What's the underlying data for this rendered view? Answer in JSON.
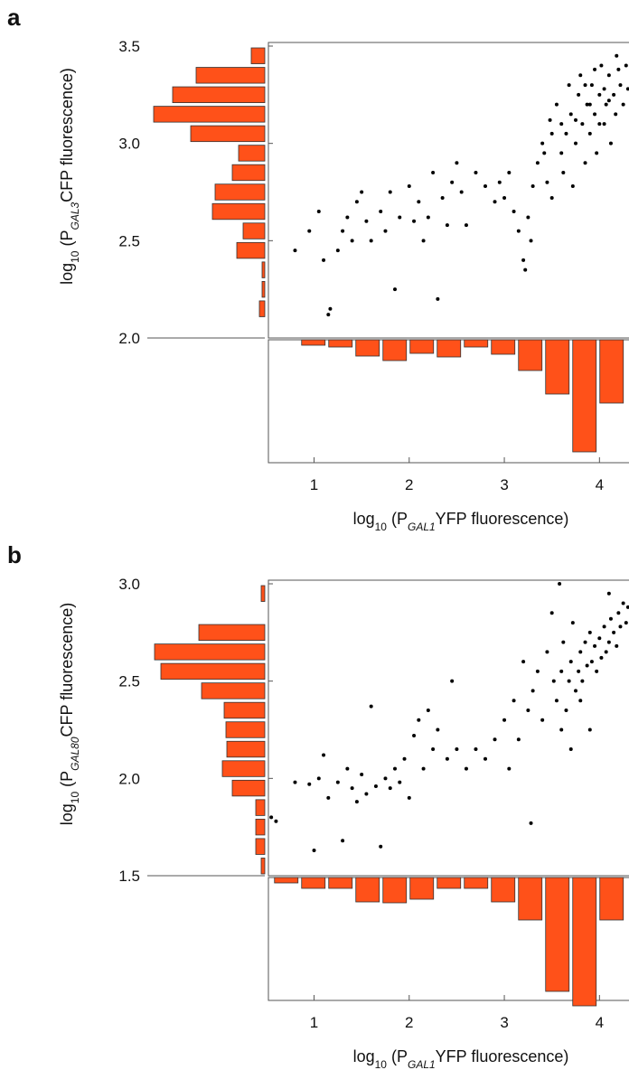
{
  "chart_data": [
    {
      "type": "scatter",
      "panel": "a",
      "x_label": [
        "log",
        "10",
        " (P",
        "GAL1",
        "YFP fluorescence)"
      ],
      "y_label": [
        "log",
        "10",
        " (P",
        "GAL3",
        "CFP fluorescence)"
      ],
      "xlim": [
        0.52,
        4.32
      ],
      "xticks": [
        1,
        2,
        3,
        4
      ],
      "ylim": [
        2.0,
        3.5
      ],
      "yticks": [
        {
          "value": 2,
          "label": "2.0"
        },
        2.5,
        {
          "value": 3,
          "label": "3.0"
        },
        3.5
      ],
      "color": "#000000",
      "x": [
        0.8,
        0.95,
        1.05,
        1.1,
        1.15,
        1.17,
        1.25,
        1.3,
        1.35,
        1.4,
        1.45,
        1.5,
        1.55,
        1.6,
        1.7,
        1.75,
        1.8,
        1.85,
        1.9,
        2.0,
        2.05,
        2.1,
        2.15,
        2.2,
        2.25,
        2.3,
        2.35,
        2.4,
        2.45,
        2.5,
        2.55,
        2.6,
        2.7,
        2.8,
        2.9,
        2.95,
        3.0,
        3.05,
        3.1,
        3.15,
        3.2,
        3.22,
        3.25,
        3.28,
        3.3,
        3.35,
        3.4,
        3.42,
        3.45,
        3.48,
        3.5,
        3.55,
        3.6,
        3.62,
        3.65,
        3.68,
        3.7,
        3.72,
        3.75,
        3.78,
        3.8,
        3.82,
        3.85,
        3.87,
        3.9,
        3.92,
        3.95,
        3.97,
        4.0,
        4.02,
        4.05,
        4.07,
        4.1,
        4.12,
        4.15,
        4.17,
        4.2,
        4.22,
        4.25,
        4.28,
        4.3,
        3.9,
        4.0,
        4.1,
        3.85,
        3.75,
        4.18,
        3.95,
        4.05,
        3.6,
        3.5
      ],
      "values": [
        2.45,
        2.55,
        2.65,
        2.4,
        2.12,
        2.15,
        2.45,
        2.55,
        2.62,
        2.5,
        2.7,
        2.75,
        2.6,
        2.5,
        2.65,
        2.55,
        2.75,
        2.25,
        2.62,
        2.78,
        2.6,
        2.7,
        2.5,
        2.62,
        2.85,
        2.2,
        2.72,
        2.58,
        2.8,
        2.9,
        2.75,
        2.58,
        2.85,
        2.78,
        2.7,
        2.8,
        2.72,
        2.85,
        2.65,
        2.55,
        2.4,
        2.35,
        2.62,
        2.5,
        2.78,
        2.9,
        3.0,
        2.95,
        2.8,
        3.12,
        2.72,
        3.2,
        2.95,
        2.85,
        3.05,
        3.3,
        3.15,
        2.78,
        3.0,
        3.25,
        3.35,
        3.1,
        2.9,
        3.2,
        3.05,
        3.3,
        3.15,
        2.95,
        3.25,
        3.4,
        3.1,
        3.2,
        3.35,
        3.0,
        3.25,
        3.15,
        3.38,
        3.3,
        3.2,
        3.4,
        3.28,
        3.2,
        3.1,
        3.22,
        3.3,
        3.12,
        3.45,
        3.38,
        3.28,
        3.1,
        3.05
      ],
      "y_hist": {
        "bins": [
          2.0,
          2.1,
          2.2,
          2.3,
          2.4,
          2.5,
          2.6,
          2.7,
          2.8,
          2.9,
          3.0,
          3.1,
          3.2,
          3.3,
          3.4,
          3.5
        ],
        "counts": [
          0,
          6,
          3,
          3,
          31,
          24,
          58,
          55,
          36,
          29,
          82,
          123,
          102,
          76,
          15
        ],
        "lim": [
          0,
          130
        ],
        "color": "#ff5119"
      },
      "x_hist": {
        "bins": [
          0.85,
          1.135,
          1.42,
          1.705,
          1.99,
          2.275,
          2.56,
          2.845,
          3.13,
          3.415,
          3.7,
          3.985,
          4.27
        ],
        "counts": [
          6,
          8,
          18,
          23,
          15,
          19,
          8,
          16,
          34,
          60,
          124,
          70
        ],
        "lim": [
          0,
          136
        ],
        "color": "#ff5119"
      }
    },
    {
      "type": "scatter",
      "panel": "b",
      "x_label": [
        "log",
        "10",
        " (P",
        "GAL1",
        "YFP fluorescence)"
      ],
      "y_label": [
        "log",
        "10",
        " (P",
        "GAL80",
        "CFP fluorescence)"
      ],
      "xlim": [
        0.52,
        4.32
      ],
      "xticks": [
        1,
        2,
        3,
        4
      ],
      "ylim": [
        1.5,
        3.0
      ],
      "yticks": [
        1.5,
        {
          "value": 2,
          "label": "2.0"
        },
        2.5,
        {
          "value": 3,
          "label": "3.0"
        }
      ],
      "color": "#000000",
      "x": [
        0.55,
        0.6,
        0.8,
        0.95,
        1.0,
        1.05,
        1.1,
        1.15,
        1.25,
        1.3,
        1.35,
        1.4,
        1.45,
        1.5,
        1.55,
        1.6,
        1.65,
        1.7,
        1.75,
        1.8,
        1.85,
        1.9,
        1.95,
        2.0,
        2.05,
        2.1,
        2.15,
        2.2,
        2.25,
        2.3,
        2.4,
        2.45,
        2.5,
        2.6,
        2.7,
        2.8,
        2.9,
        3.0,
        3.05,
        3.1,
        3.15,
        3.2,
        3.25,
        3.28,
        3.3,
        3.35,
        3.4,
        3.45,
        3.5,
        3.52,
        3.55,
        3.58,
        3.6,
        3.62,
        3.65,
        3.68,
        3.7,
        3.72,
        3.75,
        3.78,
        3.8,
        3.82,
        3.85,
        3.87,
        3.9,
        3.92,
        3.95,
        3.97,
        4.0,
        4.02,
        4.05,
        4.07,
        4.1,
        4.12,
        4.15,
        4.18,
        4.2,
        4.22,
        4.25,
        4.28,
        4.3,
        3.7,
        3.9,
        4.1,
        3.6,
        3.8
      ],
      "values": [
        1.8,
        1.78,
        1.98,
        1.97,
        1.63,
        2.0,
        2.12,
        1.9,
        1.98,
        1.68,
        2.05,
        1.95,
        1.88,
        2.02,
        1.92,
        2.37,
        1.96,
        1.65,
        2.0,
        1.95,
        2.05,
        1.98,
        2.1,
        1.9,
        2.22,
        2.3,
        2.05,
        2.35,
        2.15,
        2.25,
        2.1,
        2.5,
        2.15,
        2.05,
        2.15,
        2.1,
        2.2,
        2.3,
        2.05,
        2.4,
        2.2,
        2.6,
        2.35,
        1.77,
        2.45,
        2.55,
        2.3,
        2.65,
        2.85,
        2.5,
        2.4,
        3.0,
        2.55,
        2.7,
        2.35,
        2.5,
        2.6,
        2.8,
        2.45,
        2.55,
        2.65,
        2.5,
        2.7,
        2.58,
        2.75,
        2.6,
        2.68,
        2.55,
        2.72,
        2.62,
        2.78,
        2.65,
        2.7,
        2.82,
        2.75,
        2.68,
        2.85,
        2.78,
        2.9,
        2.8,
        2.88,
        2.15,
        2.25,
        2.95,
        2.25,
        2.4
      ],
      "y_hist": {
        "bins": [
          1.5,
          1.6,
          1.7,
          1.8,
          1.9,
          2.0,
          2.1,
          2.2,
          2.3,
          2.4,
          2.5,
          2.6,
          2.7,
          2.8,
          2.9,
          3.0
        ],
        "counts": [
          4,
          10,
          10,
          10,
          36,
          47,
          42,
          43,
          45,
          70,
          115,
          122,
          73,
          0,
          4
        ],
        "lim": [
          0,
          130
        ],
        "color": "#ff5119"
      },
      "x_hist": {
        "bins": [
          0.565,
          0.85,
          1.135,
          1.42,
          1.705,
          1.99,
          2.275,
          2.56,
          2.845,
          3.13,
          3.415,
          3.7,
          3.985,
          4.27
        ],
        "counts": [
          6,
          12,
          12,
          27,
          28,
          24,
          12,
          12,
          27,
          47,
          126,
          142,
          47
        ],
        "lim": [
          0,
          136
        ],
        "color": "#ff5119"
      }
    }
  ]
}
